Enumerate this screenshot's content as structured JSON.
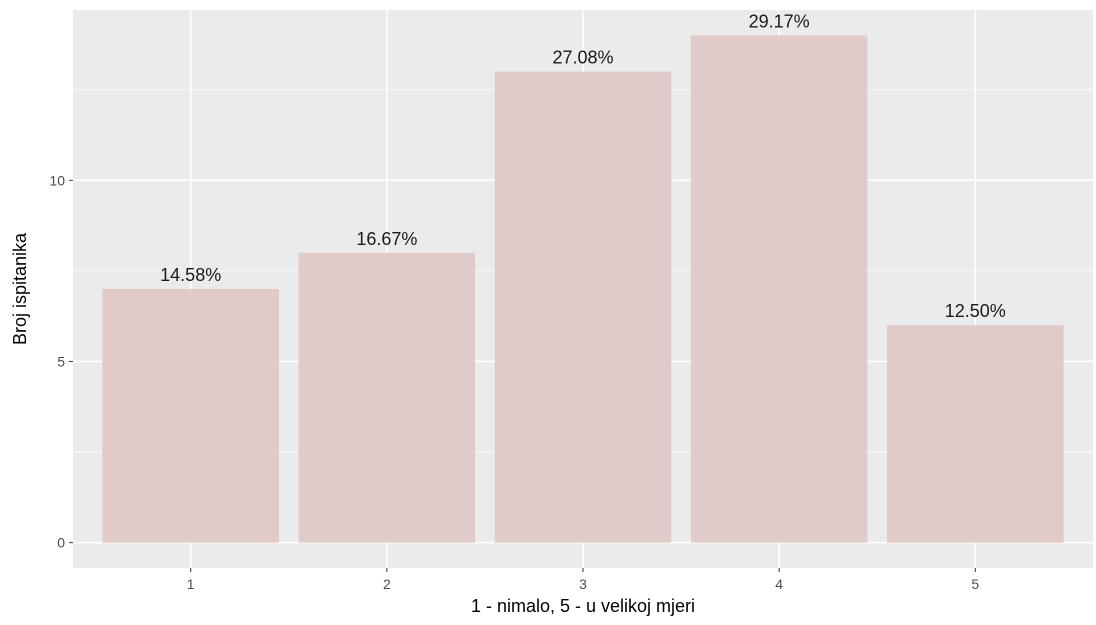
{
  "chart_data": {
    "type": "bar",
    "categories": [
      "1",
      "2",
      "3",
      "4",
      "5"
    ],
    "values": [
      7,
      8,
      13,
      14,
      6
    ],
    "labels": [
      "14.58%",
      "16.67%",
      "27.08%",
      "29.17%",
      "12.50%"
    ],
    "title": "",
    "xlabel": "1 - nimalo, 5 - u velikoj mjeri",
    "ylabel": "Broj ispitanika",
    "ylim": [
      -0.7,
      14.7
    ],
    "yticks": [
      "0",
      "5",
      "10"
    ],
    "grid": true,
    "colors": {
      "panel": "#ebebeb",
      "grid_major": "#ffffff",
      "bar": "#e0cbc9",
      "tick": "#333333"
    }
  }
}
